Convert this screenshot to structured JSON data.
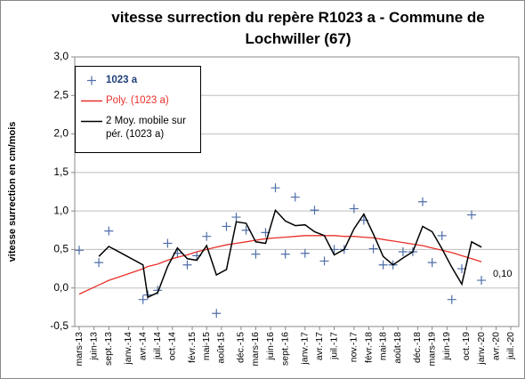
{
  "chart_data": {
    "type": "scatter",
    "title": "vitesse surrection du repère R1023 a - Commune de Lochwiller (67)",
    "y_label": "vitesse surrection en cm/mois",
    "x": [
      "2013-03",
      "2013-07",
      "2013-09",
      "2014-04",
      "2014-05",
      "2014-07",
      "2014-09",
      "2014-11",
      "2015-01",
      "2015-03",
      "2015-05",
      "2015-07",
      "2015-09",
      "2015-11",
      "2016-01",
      "2016-03",
      "2016-05",
      "2016-07",
      "2016-09",
      "2016-11",
      "2017-01",
      "2017-03",
      "2017-05",
      "2017-07",
      "2017-09",
      "2017-11",
      "2018-01",
      "2018-03",
      "2018-05",
      "2018-07",
      "2018-09",
      "2018-11",
      "2019-01",
      "2019-03",
      "2019-05",
      "2019-07",
      "2019-09",
      "2019-11",
      "2020-01"
    ],
    "series": [
      {
        "name": "1023 a",
        "color": "#4f6fa8",
        "kind": "points",
        "values": [
          0.49,
          0.33,
          0.74,
          -0.15,
          -0.09,
          -0.03,
          0.58,
          0.45,
          0.3,
          0.42,
          0.67,
          -0.33,
          0.8,
          0.92,
          0.75,
          0.44,
          0.72,
          1.3,
          0.44,
          1.18,
          0.45,
          1.01,
          0.35,
          0.5,
          0.5,
          1.03,
          0.88,
          0.51,
          0.3,
          0.3,
          0.47,
          0.47,
          1.12,
          0.33,
          0.68,
          -0.15,
          0.25,
          0.95,
          0.1
        ],
        "value_labels": [
          null,
          null,
          null,
          null,
          null,
          null,
          null,
          null,
          null,
          null,
          null,
          null,
          null,
          null,
          null,
          null,
          null,
          null,
          null,
          null,
          null,
          null,
          null,
          null,
          null,
          null,
          null,
          null,
          null,
          null,
          null,
          null,
          null,
          null,
          null,
          null,
          null,
          null,
          "0,10"
        ]
      },
      {
        "name": "Poly. (1023 a)",
        "color": "#e8302a",
        "kind": "line",
        "values": [
          -0.08,
          0.04,
          0.1,
          0.25,
          0.28,
          0.31,
          0.36,
          0.4,
          0.43,
          0.47,
          0.5,
          0.53,
          0.56,
          0.58,
          0.6,
          0.62,
          0.64,
          0.65,
          0.66,
          0.67,
          0.68,
          0.68,
          0.68,
          0.68,
          0.67,
          0.67,
          0.66,
          0.65,
          0.63,
          0.61,
          0.59,
          0.57,
          0.55,
          0.52,
          0.49,
          0.46,
          0.42,
          0.38,
          0.34
        ]
      },
      {
        "name": "2 Moy. mobile sur pér. (1023 a)",
        "color": "#000000",
        "kind": "line",
        "values": [
          null,
          0.41,
          0.54,
          0.3,
          -0.12,
          -0.06,
          0.28,
          0.52,
          0.38,
          0.36,
          0.55,
          0.17,
          0.24,
          0.86,
          0.84,
          0.6,
          0.58,
          1.01,
          0.87,
          0.81,
          0.82,
          0.73,
          0.68,
          0.43,
          0.5,
          0.77,
          0.96,
          0.7,
          0.41,
          0.3,
          0.39,
          0.47,
          0.8,
          0.73,
          0.51,
          0.27,
          0.05,
          0.6,
          0.53
        ]
      }
    ],
    "xlim": [
      "2013-03",
      "2020-07"
    ],
    "xticks": [
      {
        "value": "2013-03",
        "label": "mars-13"
      },
      {
        "value": "2013-06",
        "label": "juin-13"
      },
      {
        "value": "2013-09",
        "label": "sept.-13"
      },
      {
        "value": "2014-01",
        "label": "janv.-14"
      },
      {
        "value": "2014-04",
        "label": "avr.-14"
      },
      {
        "value": "2014-07",
        "label": "juil.-14"
      },
      {
        "value": "2014-10",
        "label": "oct.-14"
      },
      {
        "value": "2015-02",
        "label": "févr.-15"
      },
      {
        "value": "2015-05",
        "label": "mai-15"
      },
      {
        "value": "2015-08",
        "label": "août-15"
      },
      {
        "value": "2015-12",
        "label": "déc.-15"
      },
      {
        "value": "2016-03",
        "label": "mars-16"
      },
      {
        "value": "2016-06",
        "label": "juin-16"
      },
      {
        "value": "2016-09",
        "label": "sept.-16"
      },
      {
        "value": "2017-01",
        "label": "janv.-17"
      },
      {
        "value": "2017-04",
        "label": "avr.-17"
      },
      {
        "value": "2017-07",
        "label": "juil.-17"
      },
      {
        "value": "2017-11",
        "label": "nov.-17"
      },
      {
        "value": "2018-02",
        "label": "févr.-18"
      },
      {
        "value": "2018-05",
        "label": "mai-18"
      },
      {
        "value": "2018-08",
        "label": "août-18"
      },
      {
        "value": "2018-12",
        "label": "déc.-18"
      },
      {
        "value": "2019-03",
        "label": "mars-19"
      },
      {
        "value": "2019-06",
        "label": "juin-19"
      },
      {
        "value": "2019-10",
        "label": "oct.-19"
      },
      {
        "value": "2020-01",
        "label": "janv.-20"
      },
      {
        "value": "2020-04",
        "label": "avr.-20"
      },
      {
        "value": "2020-07",
        "label": "juil.-20"
      }
    ],
    "ylim": [
      -0.5,
      3.0
    ],
    "yticks": [
      {
        "value": -0.5,
        "label": "-0,5"
      },
      {
        "value": 0,
        "label": "0,0"
      },
      {
        "value": 0.5,
        "label": "0,5"
      },
      {
        "value": 1.0,
        "label": "1,0"
      },
      {
        "value": 1.5,
        "label": "1,5"
      },
      {
        "value": 2.0,
        "label": "2,0"
      },
      {
        "value": 2.5,
        "label": "2,5"
      },
      {
        "value": 3.0,
        "label": "3,0"
      }
    ],
    "grid": true,
    "legend": "upper left"
  }
}
